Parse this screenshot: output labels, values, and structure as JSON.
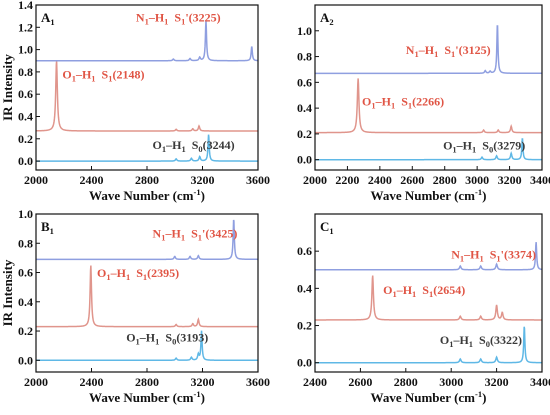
{
  "chart_data": [
    {
      "id": "A1",
      "type": "line",
      "panel_label": "A",
      "panel_sub": "1",
      "xlabel": "Wave Number (cm",
      "xlabel_sup": "-1",
      "xlabel_end": ")",
      "ylabel": "IR Intensity",
      "xlim": [
        2000,
        3600
      ],
      "ylim": [
        -0.08,
        1.4
      ],
      "xticks": [
        2000,
        2400,
        2800,
        3200,
        3600
      ],
      "xticklabels": [
        "2000",
        "2400",
        "2800",
        "3200",
        "3600"
      ],
      "yticks": [
        0.0,
        0.2,
        0.4,
        0.6,
        0.8,
        1.0,
        1.2,
        1.4
      ],
      "yticklabels": [
        "0.0",
        "0.2",
        "0.4",
        "0.6",
        "0.8",
        "1.0",
        "1.2",
        "1.4"
      ],
      "series": [
        {
          "baseline": 0.0,
          "color": "#5fb8e6",
          "peaks": [
            [
              3010,
              0.02,
              6
            ],
            [
              3120,
              0.025,
              6
            ],
            [
              3180,
              0.04,
              6
            ],
            [
              3244,
              0.24,
              5
            ]
          ]
        },
        {
          "baseline": 0.27,
          "color": "#e0958c",
          "peaks": [
            [
              2148,
              0.63,
              7
            ],
            [
              3010,
              0.015,
              6
            ],
            [
              3130,
              0.02,
              6
            ],
            [
              3175,
              0.045,
              6
            ]
          ]
        },
        {
          "baseline": 0.9,
          "color": "#8f9fe0",
          "peaks": [
            [
              2990,
              0.015,
              6
            ],
            [
              3110,
              0.02,
              6
            ],
            [
              3180,
              0.03,
              6
            ],
            [
              3225,
              0.36,
              5
            ],
            [
              3555,
              0.13,
              5
            ]
          ]
        }
      ],
      "annotations": [
        {
          "a": "N",
          "as": "1",
          "b": "H",
          "bs": "1",
          "c": "S",
          "cs": "1",
          "prime": "'",
          "d": "(3225)",
          "color": "#e05545",
          "x": 2720,
          "y": 1.25
        },
        {
          "a": "O",
          "as": "1",
          "b": "H",
          "bs": "1",
          "c": "S",
          "cs": "1",
          "prime": "",
          "d": "(2148)",
          "color": "#e05545",
          "x": 2190,
          "y": 0.74
        },
        {
          "a": "O",
          "as": "1",
          "b": "H",
          "bs": "1",
          "c": "S",
          "cs": "0",
          "prime": "",
          "d": "(3244)",
          "color": "#3a3a3a",
          "x": 2840,
          "y": 0.11
        }
      ]
    },
    {
      "id": "A2",
      "type": "line",
      "panel_label": "A",
      "panel_sub": "2",
      "xlabel": "Wave Number (cm",
      "xlabel_sup": "-1",
      "xlabel_end": ")",
      "ylabel": "",
      "xlim": [
        2000,
        3400
      ],
      "ylim": [
        -0.08,
        1.2
      ],
      "xticks": [
        2000,
        2200,
        2400,
        2600,
        2800,
        3000,
        3200,
        3400
      ],
      "xticklabels": [
        "2000",
        "2200",
        "2400",
        "2600",
        "2800",
        "3000",
        "3200",
        "3400"
      ],
      "yticks": [
        0.0,
        0.2,
        0.4,
        0.6,
        0.8,
        1.0
      ],
      "yticklabels": [
        "0.0",
        "0.2",
        "0.4",
        "0.6",
        "0.8",
        "1.0"
      ],
      "series": [
        {
          "baseline": 0.0,
          "color": "#5fb8e6",
          "peaks": [
            [
              3030,
              0.02,
              5
            ],
            [
              3120,
              0.03,
              5
            ],
            [
              3210,
              0.05,
              5
            ],
            [
              3279,
              0.17,
              4
            ]
          ]
        },
        {
          "baseline": 0.21,
          "color": "#e0958c",
          "peaks": [
            [
              2266,
              0.42,
              6
            ],
            [
              3040,
              0.02,
              5
            ],
            [
              3130,
              0.02,
              5
            ],
            [
              3210,
              0.05,
              5
            ]
          ]
        },
        {
          "baseline": 0.67,
          "color": "#8f9fe0",
          "peaks": [
            [
              3050,
              0.02,
              5
            ],
            [
              3080,
              0.015,
              5
            ],
            [
              3125,
              0.39,
              4
            ]
          ]
        }
      ],
      "annotations": [
        {
          "a": "N",
          "as": "1",
          "b": "H",
          "bs": "1",
          "c": "S",
          "cs": "1",
          "prime": "'",
          "d": "(3125)",
          "color": "#e05545",
          "x": 2560,
          "y": 0.82
        },
        {
          "a": "O",
          "as": "1",
          "b": "H",
          "bs": "1",
          "c": "S",
          "cs": "1",
          "prime": "",
          "d": "(2266)",
          "color": "#e05545",
          "x": 2290,
          "y": 0.42
        },
        {
          "a": "O",
          "as": "1",
          "b": "H",
          "bs": "1",
          "c": "S",
          "cs": "0",
          "prime": "",
          "d": "(3279)",
          "color": "#3a3a3a",
          "x": 2790,
          "y": 0.08
        }
      ]
    },
    {
      "id": "B1",
      "type": "line",
      "panel_label": "B",
      "panel_sub": "1",
      "xlabel": "Wave Number (cm",
      "xlabel_sup": "-1",
      "xlabel_end": ")",
      "ylabel": "IR Intensity",
      "xlim": [
        2000,
        3600
      ],
      "ylim": [
        -0.08,
        1.0
      ],
      "xticks": [
        2000,
        2400,
        2800,
        3200,
        3600
      ],
      "xticklabels": [
        "2000",
        "2400",
        "2800",
        "3200",
        "3600"
      ],
      "yticks": [
        0.0,
        0.2,
        0.4,
        0.6,
        0.8,
        1.0
      ],
      "yticklabels": [
        "0.0",
        "0.2",
        "0.4",
        "0.6",
        "0.8",
        "1.0"
      ],
      "series": [
        {
          "baseline": 0.0,
          "color": "#5fb8e6",
          "peaks": [
            [
              3010,
              0.015,
              6
            ],
            [
              3120,
              0.02,
              6
            ],
            [
              3170,
              0.04,
              6
            ],
            [
              3193,
              0.2,
              5
            ]
          ]
        },
        {
          "baseline": 0.23,
          "color": "#e0958c",
          "peaks": [
            [
              2395,
              0.42,
              6
            ],
            [
              3010,
              0.015,
              6
            ],
            [
              3130,
              0.02,
              6
            ],
            [
              3170,
              0.05,
              6
            ]
          ]
        },
        {
          "baseline": 0.69,
          "color": "#8f9fe0",
          "peaks": [
            [
              3000,
              0.02,
              6
            ],
            [
              3110,
              0.02,
              6
            ],
            [
              3170,
              0.025,
              6
            ],
            [
              3425,
              0.28,
              5
            ]
          ]
        }
      ],
      "annotations": [
        {
          "a": "N",
          "as": "1",
          "b": "H",
          "bs": "1",
          "c": "S",
          "cs": "1",
          "prime": "'",
          "d": "(3425)",
          "color": "#e05545",
          "x": 2840,
          "y": 0.84
        },
        {
          "a": "O",
          "as": "1",
          "b": "H",
          "bs": "1",
          "c": "S",
          "cs": "1",
          "prime": "",
          "d": "(2395)",
          "color": "#e05545",
          "x": 2440,
          "y": 0.57
        },
        {
          "a": "O",
          "as": "1",
          "b": "H",
          "bs": "1",
          "c": "S",
          "cs": "0",
          "prime": "",
          "d": "(3193)",
          "color": "#3a3a3a",
          "x": 2650,
          "y": 0.13
        }
      ]
    },
    {
      "id": "C1",
      "type": "line",
      "panel_label": "C",
      "panel_sub": "1",
      "xlabel": "Wave Number (cm",
      "xlabel_sup": "-1",
      "xlabel_end": ")",
      "ylabel": "",
      "xlim": [
        2400,
        3400
      ],
      "ylim": [
        -0.05,
        0.8
      ],
      "xticks": [
        2400,
        2600,
        2800,
        3000,
        3200,
        3400
      ],
      "xticklabels": [
        "2400",
        "2600",
        "2800",
        "3000",
        "3200",
        "3400"
      ],
      "yticks": [
        0.0,
        0.2,
        0.4,
        0.6
      ],
      "yticklabels": [
        "0.0",
        "0.2",
        "0.4",
        "0.6"
      ],
      "series": [
        {
          "baseline": 0.0,
          "color": "#5fb8e6",
          "peaks": [
            [
              3040,
              0.02,
              4
            ],
            [
              3130,
              0.02,
              4
            ],
            [
              3200,
              0.03,
              4
            ],
            [
              3322,
              0.2,
              3
            ]
          ]
        },
        {
          "baseline": 0.23,
          "color": "#e0958c",
          "peaks": [
            [
              2654,
              0.24,
              4
            ],
            [
              3040,
              0.02,
              4
            ],
            [
              3130,
              0.02,
              4
            ],
            [
              3200,
              0.08,
              4
            ],
            [
              3225,
              0.04,
              4
            ]
          ]
        },
        {
          "baseline": 0.5,
          "color": "#8f9fe0",
          "peaks": [
            [
              3040,
              0.02,
              4
            ],
            [
              3130,
              0.02,
              4
            ],
            [
              3200,
              0.03,
              4
            ],
            [
              3374,
              0.15,
              3
            ]
          ]
        }
      ],
      "annotations": [
        {
          "a": "N",
          "as": "1",
          "b": "H",
          "bs": "1",
          "c": "S",
          "cs": "1",
          "prime": "'",
          "d": "(3374)",
          "color": "#e05545",
          "x": 3000,
          "y": 0.56
        },
        {
          "a": "O",
          "as": "1",
          "b": "H",
          "bs": "1",
          "c": "S",
          "cs": "1",
          "prime": "",
          "d": "(2654)",
          "color": "#e05545",
          "x": 2700,
          "y": 0.37
        },
        {
          "a": "O",
          "as": "1",
          "b": "H",
          "bs": "1",
          "c": "S",
          "cs": "0",
          "prime": "",
          "d": "(3322)",
          "color": "#3a3a3a",
          "x": 2950,
          "y": 0.1
        }
      ]
    }
  ]
}
